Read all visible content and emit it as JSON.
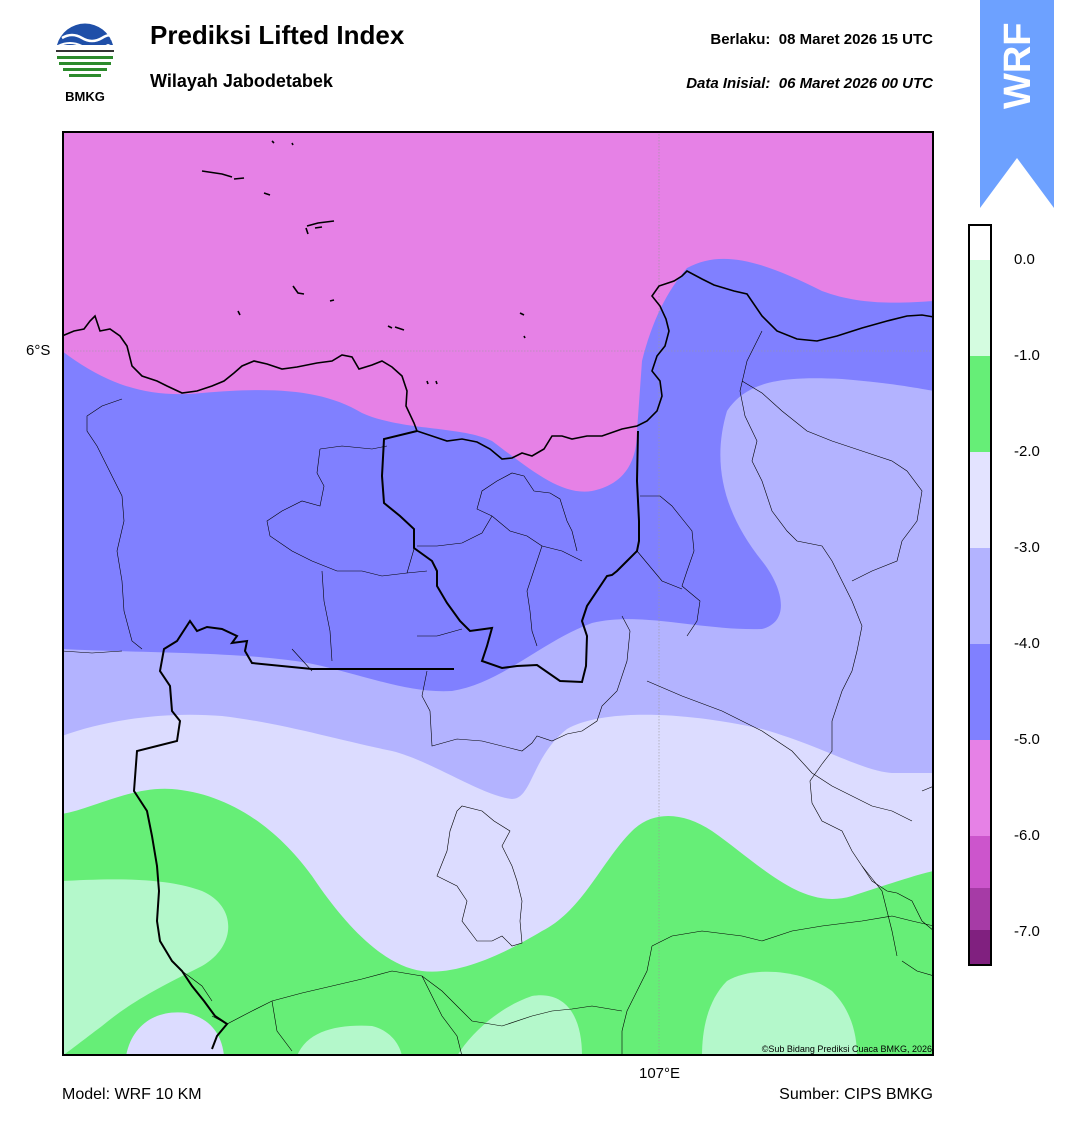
{
  "header": {
    "logo_text": "BMKG",
    "title": "Prediksi Lifted Index",
    "subtitle": "Wilayah Jabodetabek",
    "valid_label": "Berlaku:",
    "valid_value": "08 Maret 2026 15 UTC",
    "init_label": "Data Inisial:",
    "init_value": "06 Maret 2026 00 UTC"
  },
  "badge": {
    "text": "WRF",
    "color": "#6da1ff"
  },
  "map": {
    "lat_label": "6°S",
    "lon_label": "107°E",
    "copyright": "©Sub Bidang Prediksi Cuaca BMKG, 2026",
    "colors": {
      "magenta": "#e681e6",
      "blue": "#8080ff",
      "lavender": "#b3b3ff",
      "pale": "#dcdcff",
      "green": "#66ee77",
      "lightgreen": "#b4f8cb"
    }
  },
  "colorbar": {
    "labels": [
      "0.0",
      "-1.0",
      "-2.0",
      "-3.0",
      "-4.0",
      "-5.0",
      "-6.0",
      "-7.0"
    ],
    "colors": [
      "#ffffff",
      "#d4fce0",
      "#66ee77",
      "#e3e3ff",
      "#b3b3ff",
      "#8080ff",
      "#e681e6",
      "#cc55cc",
      "#a63ba6",
      "#80207f"
    ]
  },
  "footer": {
    "model": "Model: WRF 10 KM",
    "source": "Sumber: CIPS BMKG"
  }
}
